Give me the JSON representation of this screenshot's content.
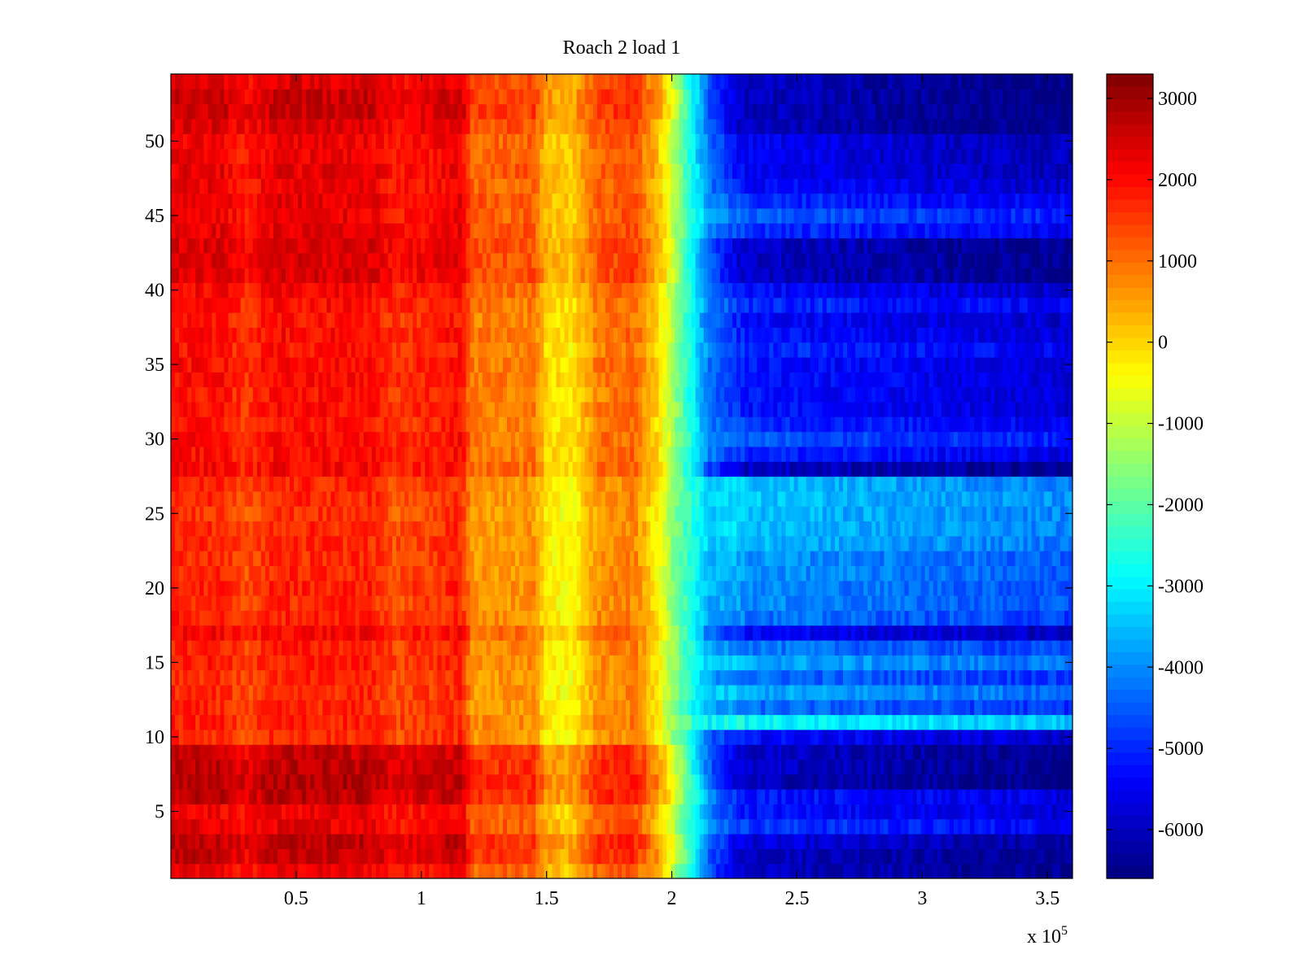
{
  "chart_data": {
    "type": "heatmap",
    "title": "Roach 2 load 1",
    "xlabel": "",
    "ylabel": "",
    "x_exponent_label": "x 10",
    "x_exponent_power": "5",
    "xlim": [
      0,
      360000
    ],
    "ylim": [
      0.5,
      54.5
    ],
    "x_ticks": [
      50000,
      100000,
      150000,
      200000,
      250000,
      300000,
      350000
    ],
    "x_tick_labels": [
      "0.5",
      "1",
      "1.5",
      "2",
      "2.5",
      "3",
      "3.5"
    ],
    "y_ticks": [
      5,
      10,
      15,
      20,
      25,
      30,
      35,
      40,
      45,
      50
    ],
    "y_tick_labels": [
      "5",
      "10",
      "15",
      "20",
      "25",
      "30",
      "35",
      "40",
      "45",
      "50"
    ],
    "rows": 54,
    "colorbar": {
      "colormap": "jet",
      "clim": [
        -6600,
        3300
      ],
      "ticks": [
        3000,
        2000,
        1000,
        0,
        -1000,
        -2000,
        -3000,
        -4000,
        -5000,
        -6000
      ],
      "tick_labels": [
        "3000",
        "2000",
        "1000",
        "0",
        "-1000",
        "-2000",
        "-3000",
        "-4000",
        "-5000",
        "-6000"
      ]
    },
    "column_profile": {
      "x": [
        0,
        20000,
        30000,
        40000,
        80000,
        90000,
        116000,
        120000,
        145000,
        150000,
        160000,
        170000,
        185000,
        195000,
        205000,
        215000,
        230000,
        360000
      ],
      "value": [
        1900,
        1900,
        1500,
        1900,
        1900,
        1500,
        1900,
        800,
        800,
        -100,
        -300,
        800,
        1000,
        -200,
        -2300,
        -4300,
        -5200,
        -5800
      ]
    },
    "row_offsets": {
      "row": [
        1,
        2,
        3,
        4,
        5,
        6,
        7,
        8,
        9,
        10,
        11,
        12,
        13,
        14,
        15,
        16,
        17,
        18,
        19,
        20,
        21,
        22,
        23,
        24,
        25,
        26,
        27,
        28,
        29,
        30,
        31,
        32,
        33,
        34,
        35,
        36,
        37,
        38,
        39,
        40,
        41,
        42,
        43,
        44,
        45,
        46,
        47,
        48,
        49,
        50,
        51,
        52,
        53,
        54
      ],
      "left_offset": [
        300,
        700,
        800,
        400,
        300,
        800,
        900,
        800,
        700,
        -200,
        -100,
        -200,
        -200,
        -200,
        -100,
        -100,
        200,
        -100,
        -200,
        -100,
        -200,
        -200,
        -200,
        -200,
        -300,
        -200,
        -200,
        200,
        100,
        100,
        0,
        100,
        0,
        100,
        100,
        0,
        100,
        0,
        100,
        200,
        500,
        500,
        500,
        400,
        300,
        400,
        300,
        400,
        300,
        300,
        500,
        700,
        700,
        500
      ],
      "right_offset": [
        -700,
        -700,
        -500,
        400,
        0,
        100,
        -800,
        -700,
        -700,
        -100,
        2300,
        900,
        1500,
        900,
        1500,
        1000,
        -200,
        1000,
        1200,
        1200,
        1300,
        1300,
        1600,
        1700,
        1700,
        1800,
        1700,
        -700,
        200,
        700,
        300,
        0,
        0,
        0,
        0,
        300,
        0,
        -100,
        300,
        -100,
        -700,
        -700,
        -700,
        300,
        700,
        300,
        -100,
        -300,
        -300,
        -300,
        -800,
        -800,
        -800,
        -800
      ]
    }
  }
}
